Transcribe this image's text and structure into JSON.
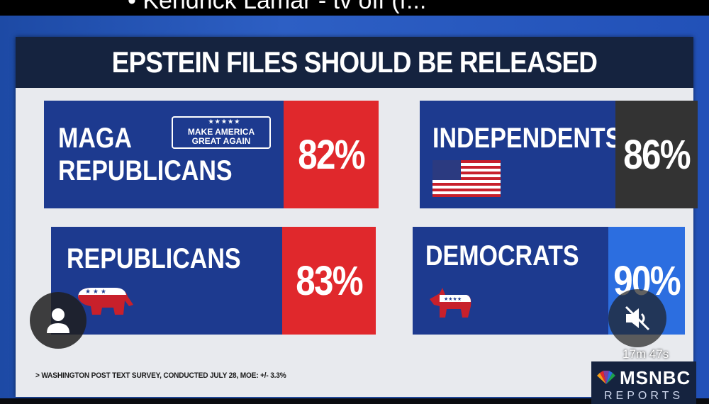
{
  "overlay": {
    "caption": "•  Kendrick Lamar - tv off (f..."
  },
  "graphic": {
    "title": "EPSTEIN FILES SHOULD BE RELEASED",
    "tiles": [
      {
        "id": "maga",
        "label_lines": [
          "MAGA",
          "REPUBLICANS"
        ],
        "badge": "MAKE AMERICA GREAT AGAIN",
        "badge_stars": "★★★★★",
        "percent": "82%",
        "percent_color": "#e0282c"
      },
      {
        "id": "independents",
        "label_lines": [
          "INDEPENDENTS"
        ],
        "percent": "86%",
        "percent_color": "#333333"
      },
      {
        "id": "republicans",
        "label_lines": [
          "REPUBLICANS"
        ],
        "percent": "83%",
        "percent_color": "#e0282c"
      },
      {
        "id": "democrats",
        "label_lines": [
          "DEMOCRATS"
        ],
        "percent": "90%",
        "percent_color": "#2c6ee0"
      }
    ],
    "footnote": "> WASHINGTON POST TEXT SURVEY, CONDUCTED JULY 28, MOE: +/- 3.3%",
    "logo": {
      "name": "MSNBC",
      "sub": "REPORTS"
    }
  },
  "player": {
    "timer": "17m 47s"
  },
  "colors": {
    "tile_blue": "#1d3a8f",
    "red": "#e0282c",
    "gray": "#333333",
    "blue": "#2c6ee0"
  }
}
